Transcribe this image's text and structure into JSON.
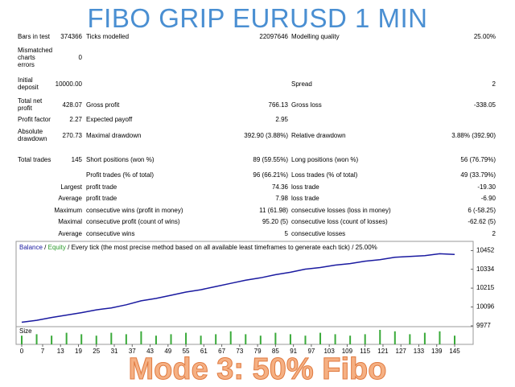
{
  "header": {
    "title": "FIBO GRIP EURUSD 1 MIN"
  },
  "report": {
    "rows": [
      [
        {
          "label": "Bars in test",
          "value": "374366"
        },
        {
          "label": "Ticks modelled",
          "value": "22097646"
        },
        {
          "label": "Modelling quality",
          "value": "25.00%"
        }
      ],
      [
        {
          "label": "Mismatched charts errors",
          "value": "0"
        },
        null,
        null
      ],
      [
        {
          "label": "Initial deposit",
          "value": "10000.00"
        },
        null,
        {
          "label": "Spread",
          "value": "2"
        }
      ],
      [
        {
          "label": "Total net profit",
          "value": "428.07"
        },
        {
          "label": "Gross profit",
          "value": "766.13"
        },
        {
          "label": "Gross loss",
          "value": "-338.05"
        }
      ],
      [
        {
          "label": "Profit factor",
          "value": "2.27"
        },
        {
          "label": "Expected payoff",
          "value": "2.95"
        },
        null
      ],
      [
        {
          "label": "Absolute drawdown",
          "value": "270.73"
        },
        {
          "label": "Maximal drawdown",
          "value": "392.90 (3.88%)"
        },
        {
          "label": "Relative drawdown",
          "value": "3.88% (392.90)"
        }
      ],
      [
        {
          "label": "Total trades",
          "value": "145"
        },
        {
          "label": "Short positions (won %)",
          "value": "89 (59.55%)"
        },
        {
          "label": "Long positions (won %)",
          "value": "56 (76.79%)"
        }
      ],
      [
        null,
        {
          "label": "Profit trades (% of total)",
          "value": "96 (66.21%)"
        },
        {
          "label": "Loss trades (% of total)",
          "value": "49 (33.79%)"
        }
      ],
      [
        {
          "label": "Largest"
        },
        {
          "label": "profit trade",
          "value": "74.36"
        },
        {
          "label": "loss trade",
          "value": "-19.30"
        }
      ],
      [
        {
          "label": "Average"
        },
        {
          "label": "profit trade",
          "value": "7.98"
        },
        {
          "label": "loss trade",
          "value": "-6.90"
        }
      ],
      [
        {
          "label": "Maximum"
        },
        {
          "label": "consecutive wins (profit in money)",
          "value": "11 (61.98)"
        },
        {
          "label": "consecutive losses (loss in money)",
          "value": "6 (-58.25)"
        }
      ],
      [
        {
          "label": "Maximal"
        },
        {
          "label": "consecutive profit (count of wins)",
          "value": "95.20 (5)"
        },
        {
          "label": "consecutive loss (count of losses)",
          "value": "-62.62 (5)"
        }
      ],
      [
        {
          "label": "Average"
        },
        {
          "label": "consecutive wins",
          "value": "5"
        },
        {
          "label": "consecutive losses",
          "value": "2"
        }
      ]
    ]
  },
  "chart_data": {
    "type": "line",
    "legend": {
      "balance": "Balance",
      "separator": "/",
      "equity": "Equity",
      "method": "Every tick (the most precise method based on all available least timeframes to generate each tick)",
      "quality": "25.00%"
    },
    "size_label": "Size",
    "x": [
      0,
      5,
      10,
      15,
      20,
      25,
      30,
      35,
      40,
      45,
      50,
      55,
      60,
      65,
      70,
      75,
      80,
      85,
      90,
      95,
      100,
      105,
      110,
      115,
      120,
      125,
      130,
      135,
      140,
      145
    ],
    "series": [
      {
        "name": "Balance",
        "color": "#1a1aa0",
        "values": [
          10000,
          10012,
          10030,
          10045,
          10060,
          10078,
          10090,
          10110,
          10135,
          10150,
          10170,
          10190,
          10205,
          10225,
          10245,
          10265,
          10280,
          10300,
          10315,
          10335,
          10345,
          10360,
          10370,
          10385,
          10395,
          10410,
          10415,
          10420,
          10432,
          10428
        ]
      }
    ],
    "sizes": {
      "color": "#3aaa3a",
      "values": [
        0.6,
        0.7,
        0.6,
        0.8,
        0.7,
        0.6,
        0.8,
        0.7,
        0.9,
        0.6,
        0.7,
        0.8,
        0.6,
        0.7,
        0.9,
        0.7,
        0.6,
        0.8,
        0.7,
        0.6,
        0.8,
        0.7,
        0.6,
        0.7,
        1.0,
        0.9,
        0.7,
        0.8,
        0.9,
        0.6
      ]
    },
    "xlim": [
      0,
      145
    ],
    "xticks": [
      0,
      7,
      13,
      19,
      25,
      31,
      37,
      43,
      49,
      55,
      61,
      67,
      73,
      79,
      85,
      91,
      97,
      103,
      109,
      115,
      121,
      127,
      133,
      139,
      145
    ],
    "ylim": [
      9977,
      10510
    ],
    "yticks": [
      9977,
      10096,
      10215,
      10334,
      10452
    ]
  },
  "footer": {
    "caption": "Mode 3: 50% Fibo"
  }
}
